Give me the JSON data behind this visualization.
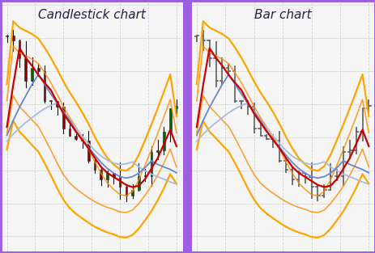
{
  "title_left": "Candlestick chart",
  "title_right": "Bar chart",
  "bg_color": "#f0f0f0",
  "panel_bg": "#f5f5f5",
  "border_color": "#9b5fe0",
  "divider_color": "#9b5fe0",
  "grid_color": "#cccccc",
  "candle_up_color": "#006400",
  "candle_down_color": "#8b0000",
  "wick_color": "#000000",
  "bar_color": "#606060",
  "red_line_color": "#cc0000",
  "blue_line_color": "#6688cc",
  "lightblue_line_color": "#aabbdd",
  "orange_outer_color": "#ffa500",
  "orange_inner_color": "#ff8c00",
  "n_candles": 28,
  "title_fontsize": 11
}
